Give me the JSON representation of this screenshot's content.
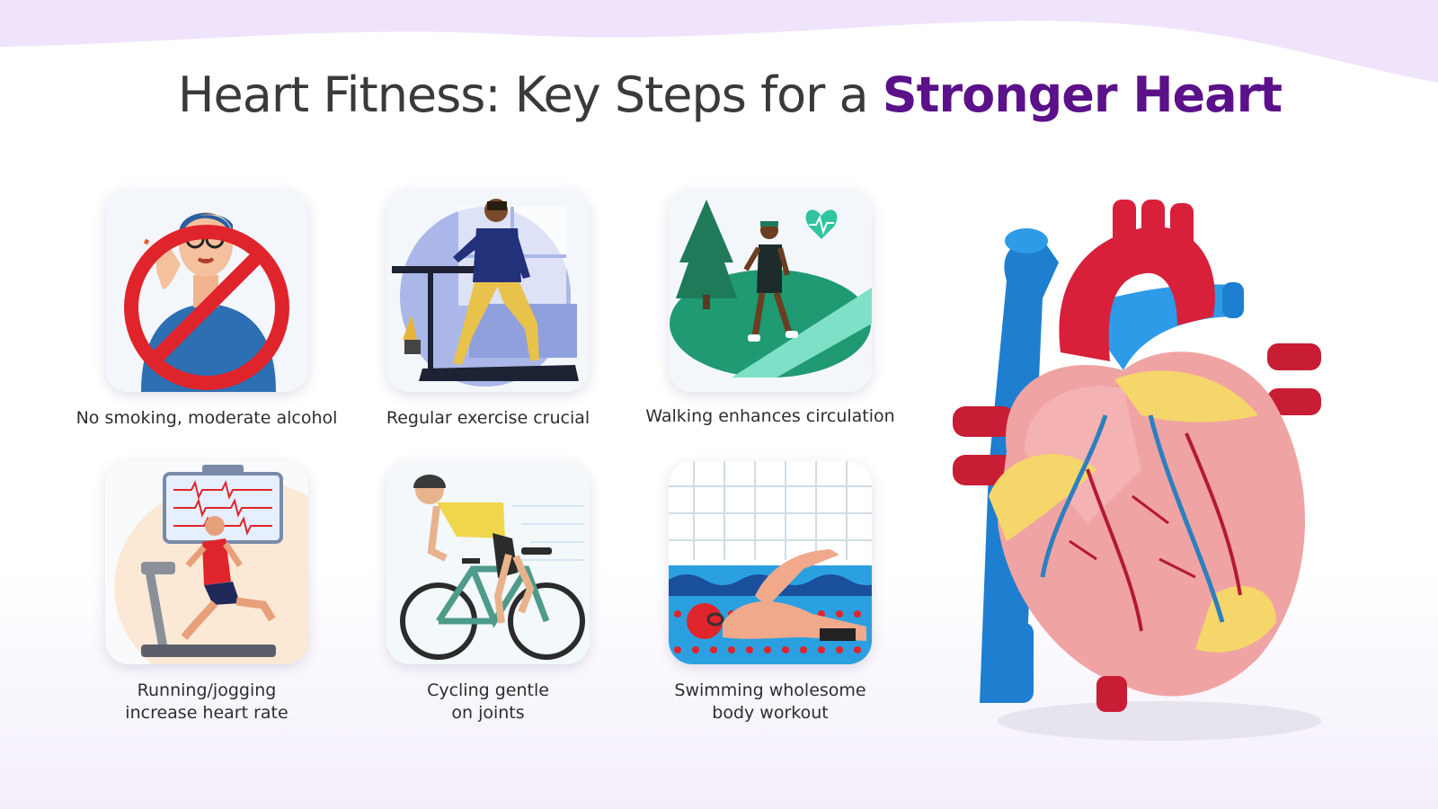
{
  "title": {
    "main": "Heart Fitness: Key Steps for a",
    "accent": "Stronger Heart"
  },
  "colors": {
    "accent": "#5a1189",
    "text": "#3a3a3a",
    "wave": "#efe4fb"
  },
  "steps": [
    {
      "lines": [
        "No smoking, moderate alcohol"
      ],
      "icon": "no-smoking-icon"
    },
    {
      "lines": [
        "Regular exercise crucial"
      ],
      "icon": "treadmill-walk-icon"
    },
    {
      "lines": [
        "Walking enhances circulation"
      ],
      "icon": "park-walk-icon"
    },
    {
      "lines": [
        "Running/jogging",
        "increase heart rate"
      ],
      "icon": "running-icon"
    },
    {
      "lines": [
        "Cycling gentle",
        "on joints"
      ],
      "icon": "cycling-icon"
    },
    {
      "lines": [
        "Swimming wholesome",
        "body workout"
      ],
      "icon": "swimming-icon"
    }
  ],
  "illustration": {
    "icon": "anatomical-heart-icon"
  }
}
